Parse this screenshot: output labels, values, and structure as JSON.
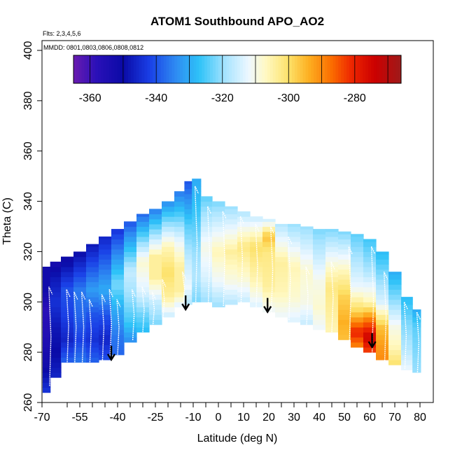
{
  "chart_data": {
    "type": "heatmap",
    "title": "ATOM1 Southbound APO_AO2",
    "subtitle_flights": "Flts: 2,3,4,5,6",
    "subtitle_dates": "MMDD: 0801,0803,0806,0808,0812",
    "xlabel": "Latitude (deg N)",
    "ylabel": "Theta (C)",
    "xlim": [
      -70,
      80
    ],
    "ylim": [
      260,
      400
    ],
    "x_ticks": [
      -70,
      -55,
      -40,
      -25,
      -10,
      0,
      10,
      20,
      30,
      40,
      50,
      60,
      70,
      80
    ],
    "x_ticks_labels": [
      "-70",
      "-55",
      "-40",
      "-25",
      "-10",
      "0",
      "10",
      "20",
      "30",
      "40",
      "50",
      "60",
      "70",
      "80"
    ],
    "x_ticks_minor": [
      -60,
      -50,
      -45,
      -35,
      -30,
      -20,
      -15,
      -5,
      5,
      15,
      25,
      35,
      45,
      55,
      65,
      75
    ],
    "y_ticks": [
      260,
      280,
      300,
      320,
      340,
      360,
      380,
      400
    ],
    "y_ticks_labels": [
      "260",
      "280",
      "300",
      "320",
      "340",
      "360",
      "380",
      "400"
    ],
    "colorbar": {
      "min": -365,
      "max": -266,
      "ticks": [
        -360,
        -340,
        -320,
        -300,
        -280
      ],
      "ticks_labels": [
        "-360",
        "-340",
        "-320",
        "-300",
        "-280"
      ],
      "divisions": [
        -360,
        -350,
        -340,
        -330,
        -320,
        -310,
        -300,
        -290,
        -280,
        -270
      ],
      "palette": [
        {
          "v": -365,
          "c": "#6a1bb0"
        },
        {
          "v": -358,
          "c": "#2a10b8"
        },
        {
          "v": -350,
          "c": "#0a0aa6"
        },
        {
          "v": -342,
          "c": "#1a3fe6"
        },
        {
          "v": -334,
          "c": "#2e8cf2"
        },
        {
          "v": -327,
          "c": "#2ec2f8"
        },
        {
          "v": -319,
          "c": "#a8e4ff"
        },
        {
          "v": -312,
          "c": "#eef8ff"
        },
        {
          "v": -307,
          "c": "#fff9c4"
        },
        {
          "v": -300,
          "c": "#fde26a"
        },
        {
          "v": -294,
          "c": "#fdb022"
        },
        {
          "v": -287,
          "c": "#fb6d00"
        },
        {
          "v": -281,
          "c": "#ee2600"
        },
        {
          "v": -274,
          "c": "#cc0000"
        },
        {
          "v": -266,
          "c": "#9e1a1a"
        }
      ]
    },
    "profiles": [
      {
        "lat": -68.5,
        "low": 264,
        "top": 314,
        "field": [
          [
            265,
            -344
          ],
          [
            275,
            -352
          ],
          [
            287,
            -356
          ],
          [
            297,
            -358
          ],
          [
            305,
            -352
          ],
          [
            314,
            -352
          ]
        ]
      },
      {
        "lat": -65.0,
        "low": 270,
        "top": 316,
        "field": [
          [
            270,
            -346
          ],
          [
            280,
            -350
          ],
          [
            290,
            -348
          ],
          [
            300,
            -344
          ],
          [
            310,
            -348
          ],
          [
            316,
            -354
          ]
        ]
      },
      {
        "lat": -60.0,
        "low": 276,
        "top": 318,
        "field": [
          [
            276,
            -338
          ],
          [
            285,
            -346
          ],
          [
            295,
            -342
          ],
          [
            305,
            -340
          ],
          [
            318,
            -352
          ]
        ]
      },
      {
        "lat": -55.0,
        "low": 276,
        "top": 320,
        "field": [
          [
            276,
            -336
          ],
          [
            285,
            -342
          ],
          [
            295,
            -338
          ],
          [
            305,
            -336
          ],
          [
            320,
            -350
          ]
        ]
      },
      {
        "lat": -50.0,
        "low": 276,
        "top": 323,
        "field": [
          [
            276,
            -338
          ],
          [
            285,
            -344
          ],
          [
            295,
            -340
          ],
          [
            305,
            -332
          ],
          [
            323,
            -348
          ]
        ]
      },
      {
        "lat": -45.0,
        "low": 277,
        "top": 326,
        "field": [
          [
            277,
            -340
          ],
          [
            285,
            -346
          ],
          [
            295,
            -340
          ],
          [
            305,
            -330
          ],
          [
            326,
            -346
          ]
        ]
      },
      {
        "lat": -40.0,
        "low": 279,
        "top": 329,
        "field": [
          [
            279,
            -338
          ],
          [
            287,
            -336
          ],
          [
            297,
            -330
          ],
          [
            307,
            -322
          ],
          [
            329,
            -344
          ]
        ]
      },
      {
        "lat": -35.0,
        "low": 284,
        "top": 332,
        "field": [
          [
            284,
            -334
          ],
          [
            292,
            -326
          ],
          [
            302,
            -320
          ],
          [
            312,
            -316
          ],
          [
            332,
            -340
          ]
        ]
      },
      {
        "lat": -30.0,
        "low": 288,
        "top": 335,
        "field": [
          [
            288,
            -328
          ],
          [
            296,
            -322
          ],
          [
            304,
            -314
          ],
          [
            316,
            -308
          ],
          [
            335,
            -338
          ]
        ]
      },
      {
        "lat": -25.0,
        "low": 291,
        "top": 337,
        "field": [
          [
            291,
            -322
          ],
          [
            300,
            -316
          ],
          [
            310,
            -304
          ],
          [
            318,
            -304
          ],
          [
            337,
            -336
          ]
        ]
      },
      {
        "lat": -20.0,
        "low": 294,
        "top": 340,
        "field": [
          [
            294,
            -316
          ],
          [
            302,
            -304
          ],
          [
            312,
            -300
          ],
          [
            322,
            -306
          ],
          [
            340,
            -334
          ]
        ]
      },
      {
        "lat": -15.0,
        "low": 298,
        "top": 344,
        "field": [
          [
            298,
            -314
          ],
          [
            304,
            -304
          ],
          [
            314,
            -304
          ],
          [
            324,
            -312
          ],
          [
            344,
            -336
          ]
        ]
      },
      {
        "lat": -12.0,
        "low": 299,
        "top": 348,
        "field": [
          [
            299,
            -318
          ],
          [
            306,
            -312
          ],
          [
            316,
            -316
          ],
          [
            330,
            -324
          ],
          [
            348,
            -340
          ]
        ]
      },
      {
        "lat": -9.0,
        "low": 300,
        "top": 349,
        "field": [
          [
            300,
            -322
          ],
          [
            310,
            -318
          ],
          [
            320,
            -320
          ],
          [
            335,
            -326
          ],
          [
            349,
            -330
          ]
        ]
      },
      {
        "lat": -5.0,
        "low": 300,
        "top": 342,
        "field": [
          [
            300,
            -320
          ],
          [
            310,
            -314
          ],
          [
            322,
            -310
          ],
          [
            342,
            -324
          ]
        ]
      },
      {
        "lat": 0.0,
        "low": 298,
        "top": 340,
        "field": [
          [
            298,
            -320
          ],
          [
            308,
            -312
          ],
          [
            320,
            -306
          ],
          [
            340,
            -322
          ]
        ]
      },
      {
        "lat": 5.0,
        "low": 299,
        "top": 338,
        "field": [
          [
            299,
            -318
          ],
          [
            308,
            -310
          ],
          [
            320,
            -304
          ],
          [
            338,
            -320
          ]
        ]
      },
      {
        "lat": 10.0,
        "low": 300,
        "top": 336,
        "field": [
          [
            300,
            -316
          ],
          [
            310,
            -308
          ],
          [
            322,
            -302
          ],
          [
            336,
            -318
          ]
        ]
      },
      {
        "lat": 15.0,
        "low": 298,
        "top": 334,
        "field": [
          [
            298,
            -314
          ],
          [
            308,
            -306
          ],
          [
            322,
            -300
          ],
          [
            334,
            -316
          ]
        ]
      },
      {
        "lat": 20.0,
        "low": 296,
        "top": 333,
        "field": [
          [
            296,
            -312
          ],
          [
            306,
            -304
          ],
          [
            320,
            -302
          ],
          [
            326,
            -296
          ],
          [
            333,
            -316
          ]
        ]
      },
      {
        "lat": 25.0,
        "low": 294,
        "top": 331,
        "field": [
          [
            294,
            -312
          ],
          [
            304,
            -306
          ],
          [
            316,
            -304
          ],
          [
            331,
            -318
          ]
        ]
      },
      {
        "lat": 30.0,
        "low": 292,
        "top": 331,
        "field": [
          [
            292,
            -314
          ],
          [
            302,
            -308
          ],
          [
            314,
            -306
          ],
          [
            331,
            -320
          ]
        ]
      },
      {
        "lat": 35.0,
        "low": 291,
        "top": 330,
        "field": [
          [
            291,
            -316
          ],
          [
            300,
            -310
          ],
          [
            312,
            -308
          ],
          [
            330,
            -320
          ]
        ]
      },
      {
        "lat": 40.0,
        "low": 289,
        "top": 329,
        "field": [
          [
            289,
            -312
          ],
          [
            298,
            -308
          ],
          [
            308,
            -310
          ],
          [
            329,
            -322
          ]
        ]
      },
      {
        "lat": 45.0,
        "low": 288,
        "top": 329,
        "field": [
          [
            288,
            -306
          ],
          [
            296,
            -304
          ],
          [
            306,
            -302
          ],
          [
            314,
            -308
          ],
          [
            329,
            -322
          ]
        ]
      },
      {
        "lat": 50.0,
        "low": 285,
        "top": 328,
        "field": [
          [
            285,
            -296
          ],
          [
            292,
            -294
          ],
          [
            302,
            -298
          ],
          [
            312,
            -306
          ],
          [
            328,
            -322
          ]
        ]
      },
      {
        "lat": 55.0,
        "low": 282,
        "top": 327,
        "field": [
          [
            282,
            -290
          ],
          [
            288,
            -280
          ],
          [
            296,
            -298
          ],
          [
            306,
            -312
          ],
          [
            327,
            -324
          ]
        ]
      },
      {
        "lat": 60.0,
        "low": 280,
        "top": 325,
        "field": [
          [
            280,
            -284
          ],
          [
            286,
            -274
          ],
          [
            292,
            -286
          ],
          [
            300,
            -306
          ],
          [
            312,
            -318
          ],
          [
            325,
            -326
          ]
        ]
      },
      {
        "lat": 65.0,
        "low": 277,
        "top": 320,
        "field": [
          [
            277,
            -290
          ],
          [
            283,
            -292
          ],
          [
            290,
            -296
          ],
          [
            300,
            -314
          ],
          [
            320,
            -328
          ]
        ]
      },
      {
        "lat": 70.0,
        "low": 275,
        "top": 312,
        "field": [
          [
            275,
            -300
          ],
          [
            282,
            -306
          ],
          [
            290,
            -310
          ],
          [
            300,
            -320
          ],
          [
            312,
            -330
          ]
        ]
      },
      {
        "lat": 75.0,
        "low": 273,
        "top": 302,
        "field": [
          [
            273,
            -312
          ],
          [
            282,
            -318
          ],
          [
            292,
            -322
          ],
          [
            302,
            -328
          ]
        ]
      },
      {
        "lat": 79.0,
        "low": 272,
        "top": 297,
        "field": [
          [
            272,
            -320
          ],
          [
            282,
            -322
          ],
          [
            290,
            -324
          ],
          [
            297,
            -330
          ]
        ]
      }
    ],
    "flight_tracks": [
      {
        "lat": -67,
        "top": 306
      },
      {
        "lat": -60,
        "top": 305
      },
      {
        "lat": -57,
        "top": 304
      },
      {
        "lat": -54,
        "top": 304
      },
      {
        "lat": -51,
        "top": 301
      },
      {
        "lat": -46,
        "top": 303
      },
      {
        "lat": -43,
        "top": 305
      },
      {
        "lat": -40,
        "top": 301
      },
      {
        "lat": -34,
        "top": 305
      },
      {
        "lat": -30,
        "top": 306
      },
      {
        "lat": -26,
        "top": 304
      },
      {
        "lat": -22,
        "top": 309
      },
      {
        "lat": -14,
        "top": 312
      },
      {
        "lat": -9,
        "top": 346
      },
      {
        "lat": -4,
        "top": 338
      },
      {
        "lat": 2,
        "top": 336
      },
      {
        "lat": 9,
        "top": 334
      },
      {
        "lat": 15,
        "top": 331
      },
      {
        "lat": 21,
        "top": 330
      },
      {
        "lat": 28,
        "top": 326
      },
      {
        "lat": 35,
        "top": 314
      },
      {
        "lat": 45,
        "top": 316
      },
      {
        "lat": 52,
        "top": 322
      },
      {
        "lat": 61,
        "top": 322
      },
      {
        "lat": 66,
        "top": 312
      },
      {
        "lat": 74,
        "top": 300
      },
      {
        "lat": 79,
        "top": 296
      }
    ],
    "arrows": [
      {
        "lat": -42.5,
        "theta": 277
      },
      {
        "lat": -13.0,
        "theta": 297
      },
      {
        "lat": 19.5,
        "theta": 296
      },
      {
        "lat": 61.0,
        "theta": 282
      }
    ]
  }
}
